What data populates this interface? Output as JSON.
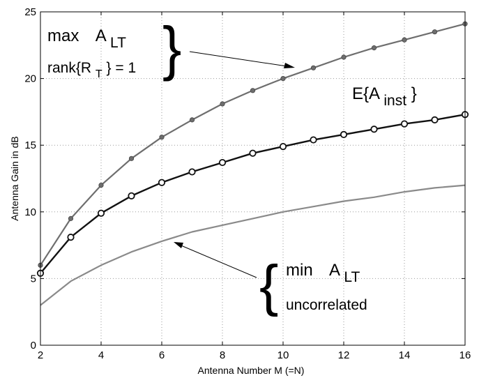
{
  "chart_data": {
    "type": "line",
    "title": "",
    "xlabel": "Antenna Number M (=N)",
    "ylabel": "Antenna Gain in dB",
    "xlim": [
      2,
      16
    ],
    "ylim": [
      0,
      25
    ],
    "xticks": [
      2,
      4,
      6,
      8,
      10,
      12,
      14,
      16
    ],
    "yticks": [
      0,
      5,
      10,
      15,
      20,
      25
    ],
    "grid": true,
    "legend": "none",
    "x": [
      2,
      3,
      4,
      5,
      6,
      7,
      8,
      9,
      10,
      11,
      12,
      13,
      14,
      15,
      16
    ],
    "series": [
      {
        "color": "#6e6e6e",
        "marker": "dot",
        "values": [
          6.0,
          9.5,
          12.0,
          14.0,
          15.6,
          16.9,
          18.1,
          19.1,
          20.0,
          20.8,
          21.6,
          22.3,
          22.9,
          23.5,
          24.1
        ]
      },
      {
        "color": "#111111",
        "marker": "circle",
        "values": [
          5.4,
          8.1,
          9.9,
          11.2,
          12.2,
          13.0,
          13.7,
          14.4,
          14.9,
          15.4,
          15.8,
          16.2,
          16.6,
          16.9,
          17.3
        ]
      },
      {
        "color": "#8a8a8a",
        "marker": "none",
        "values": [
          3.0,
          4.8,
          6.0,
          7.0,
          7.8,
          8.5,
          9.0,
          9.5,
          10.0,
          10.4,
          10.8,
          11.1,
          11.5,
          11.8,
          12.0
        ]
      }
    ],
    "annotations": {
      "max_label": "max",
      "a_main": "A",
      "a_lt_sub": "LT",
      "rank_prefix": "rank{R",
      "rank_sub": "T",
      "rank_suffix": "} = 1",
      "e_prefix": "E{A",
      "e_sub": "inst",
      "e_suffix": "}",
      "min_label": "min",
      "uncorrelated_label": "uncorrelated",
      "brace_right": "}",
      "brace_left": "{"
    }
  }
}
